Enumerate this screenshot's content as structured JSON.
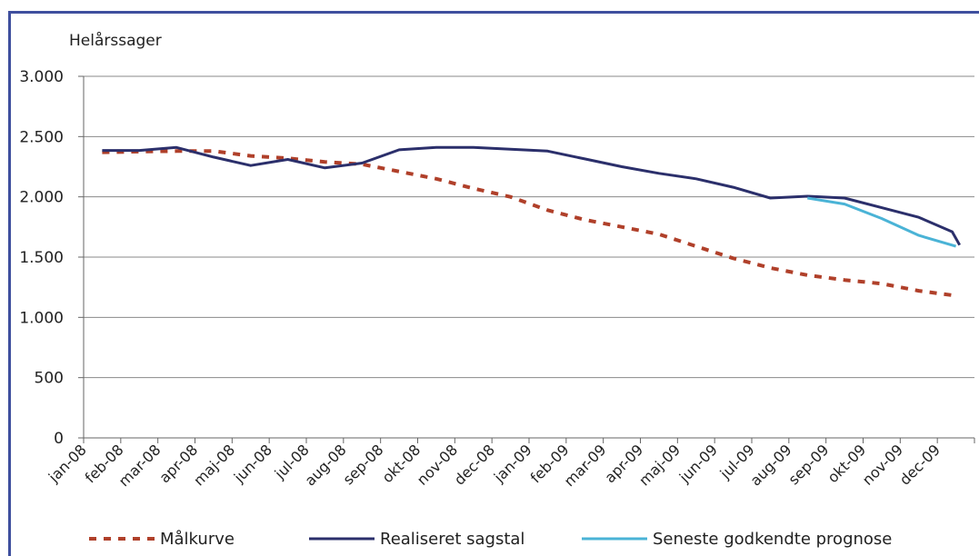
{
  "chart_data": {
    "type": "line",
    "ylabel": "Helårssager",
    "ylim": [
      0,
      3000
    ],
    "yticks": [
      0,
      500,
      1000,
      1500,
      2000,
      2500,
      3000
    ],
    "ytick_labels": [
      "0",
      "500",
      "1.000",
      "1.500",
      "2.000",
      "2.500",
      "3.000"
    ],
    "categories": [
      "jan-08",
      "feb-08",
      "mar-08",
      "apr-08",
      "maj-08",
      "jun-08",
      "jul-08",
      "aug-08",
      "sep-08",
      "okt-08",
      "nov-08",
      "dec-08",
      "jan-09",
      "feb-09",
      "mar-09",
      "apr-09",
      "maj-09",
      "jun-09",
      "jul-09",
      "aug-09",
      "sep-09",
      "okt-09",
      "nov-09",
      "dec-09"
    ],
    "grid": true,
    "legend_position": "bottom",
    "series": [
      {
        "name": "Målkurve",
        "style": "dashed",
        "color": "#b0402a",
        "x": [
          0.5,
          1.5,
          2.5,
          3.5,
          4.5,
          5.5,
          6.5,
          7.5,
          8.5,
          9.5,
          10.5,
          11.5,
          12.5,
          13.5,
          14.5,
          15.5,
          16.5,
          17.5,
          18.5,
          19.5,
          20.5,
          21.5,
          22.5,
          23.5
        ],
        "values": [
          2370,
          2375,
          2380,
          2380,
          2340,
          2320,
          2290,
          2270,
          2210,
          2150,
          2070,
          2000,
          1890,
          1810,
          1750,
          1690,
          1590,
          1490,
          1410,
          1350,
          1310,
          1280,
          1220,
          1180
        ]
      },
      {
        "name": "Realiseret sagstal",
        "style": "solid",
        "color": "#2b2f6b",
        "x": [
          0.5,
          1.5,
          2.5,
          3.5,
          4.5,
          5.5,
          6.5,
          7.5,
          8.5,
          9.5,
          10.5,
          11.5,
          12.5,
          13.5,
          14.5,
          15.5,
          16.5,
          17.5,
          18.5,
          19.5,
          20.5,
          21.5,
          22.5,
          23.4,
          23.6
        ],
        "values": [
          2385,
          2385,
          2410,
          2330,
          2260,
          2310,
          2240,
          2280,
          2390,
          2410,
          2410,
          2395,
          2380,
          2315,
          2250,
          2195,
          2150,
          2080,
          1990,
          2005,
          1990,
          1910,
          1830,
          1710,
          1600
        ]
      },
      {
        "name": "Seneste godkendte prognose",
        "style": "solid",
        "color": "#4ab3d6",
        "x": [
          19.5,
          20.5,
          21.5,
          22.5,
          23.5
        ],
        "values": [
          1990,
          1940,
          1820,
          1680,
          1590
        ]
      }
    ]
  }
}
